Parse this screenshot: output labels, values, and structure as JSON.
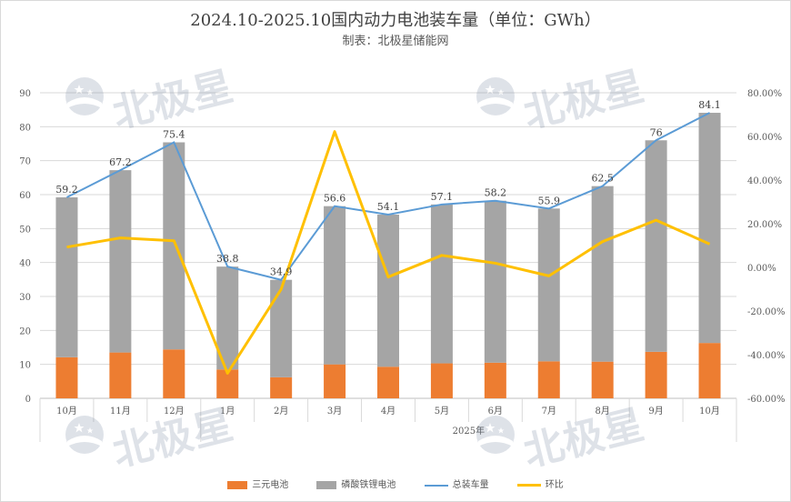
{
  "header": {
    "title": "2024.10-2025.10国内动力电池装车量（单位：GWh）",
    "subtitle": "制表：北极星储能网"
  },
  "watermark": {
    "text": "北极星",
    "icon": "polaris-star-logo-icon",
    "color": "#6b7d9a"
  },
  "colors": {
    "ternary": "#ed7d31",
    "lfp": "#a5a5a5",
    "total": "#5b9bd5",
    "mom": "#ffc000"
  },
  "chart_data": {
    "type": "bar",
    "title": "2024.10-2025.10国内动力电池装车量（单位：GWh）",
    "subtitle": "制表：北极星储能网",
    "stacked": true,
    "categories": [
      "10月",
      "11月",
      "12月",
      "1月",
      "2月",
      "3月",
      "4月",
      "5月",
      "6月",
      "7月",
      "8月",
      "9月",
      "10月"
    ],
    "category_group_label": "2025年",
    "y_left": {
      "min": 0,
      "max": 90,
      "step": 10,
      "ticks": [
        "0",
        "10",
        "20",
        "30",
        "40",
        "50",
        "60",
        "70",
        "80",
        "90"
      ]
    },
    "y_right": {
      "min": -60,
      "max": 80,
      "step": 20,
      "ticks": [
        "-60.00%",
        "-40.00%",
        "-20.00%",
        "0.00%",
        "20.00%",
        "40.00%",
        "60.00%",
        "80.00%"
      ]
    },
    "grid": true,
    "legend_position": "bottom",
    "series": [
      {
        "name": "三元电池",
        "kind": "bar",
        "axis": "left",
        "values": [
          12.1,
          13.5,
          14.4,
          8.5,
          6.2,
          10.0,
          9.3,
          10.3,
          10.5,
          10.9,
          10.8,
          13.7,
          16.3
        ]
      },
      {
        "name": "磷酸铁锂电池",
        "kind": "bar",
        "axis": "left",
        "values": [
          47.1,
          53.7,
          61.0,
          30.3,
          28.7,
          46.6,
          44.8,
          46.8,
          47.7,
          45.0,
          51.7,
          62.3,
          67.8
        ]
      },
      {
        "name": "总装车量",
        "kind": "line",
        "axis": "left",
        "values": [
          59.2,
          67.2,
          75.4,
          38.8,
          34.9,
          56.6,
          54.1,
          57.1,
          58.2,
          55.9,
          62.5,
          76,
          84.1
        ],
        "labels": [
          "59.2",
          "67.2",
          "75.4",
          "38.8",
          "34.9",
          "56.6",
          "54.1",
          "57.1",
          "58.2",
          "55.9",
          "62.5",
          "76",
          "84.1"
        ]
      },
      {
        "name": "环比",
        "kind": "line",
        "axis": "right",
        "values": [
          9.3,
          13.5,
          12.2,
          -48.5,
          -10.1,
          62.2,
          -4.4,
          5.5,
          1.9,
          -3.9,
          11.8,
          21.6,
          10.7
        ]
      }
    ]
  }
}
